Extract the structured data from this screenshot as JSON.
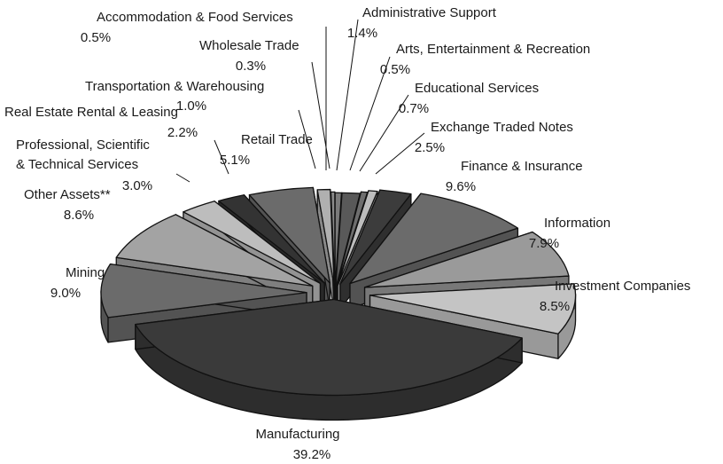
{
  "chart_data": {
    "type": "pie",
    "title": "",
    "style": "3d-exploded",
    "slices": [
      {
        "label": "Accommodation & Food Services",
        "value": 0.5,
        "display": "0.5%",
        "color": "#7a7a7a",
        "label_lines": [
          "Accommodation & Food Services"
        ]
      },
      {
        "label": "Administrative Support",
        "value": 1.4,
        "display": "1.4%",
        "color": "#595959",
        "label_lines": [
          "Administrative Support"
        ]
      },
      {
        "label": "Arts, Entertainment & Recreation",
        "value": 0.5,
        "display": "0.5%",
        "color": "#6e6e6e",
        "label_lines": [
          "Arts, Entertainment & Recreation"
        ]
      },
      {
        "label": "Educational Services",
        "value": 0.7,
        "display": "0.7%",
        "color": "#bdbdbd",
        "label_lines": [
          "Educational Services"
        ]
      },
      {
        "label": "Exchange Traded Notes",
        "value": 2.5,
        "display": "2.5%",
        "color": "#3c3c3c",
        "label_lines": [
          "Exchange Traded Notes"
        ]
      },
      {
        "label": "Finance & Insurance",
        "value": 9.6,
        "display": "9.6%",
        "color": "#6b6b6b",
        "label_lines": [
          "Finance & Insurance"
        ]
      },
      {
        "label": "Information",
        "value": 7.9,
        "display": "7.9%",
        "color": "#9a9a9a",
        "label_lines": [
          "Information"
        ]
      },
      {
        "label": "Investment Companies",
        "value": 8.5,
        "display": "8.5%",
        "color": "#c4c4c4",
        "label_lines": [
          "Investment Companies"
        ]
      },
      {
        "label": "Manufacturing",
        "value": 39.2,
        "display": "39.2%",
        "color": "#3a3a3a",
        "label_lines": [
          "Manufacturing"
        ]
      },
      {
        "label": "Mining",
        "value": 9.0,
        "display": "9.0%",
        "color": "#6b6b6b",
        "label_lines": [
          "Mining"
        ]
      },
      {
        "label": "Other Assets**",
        "value": 8.6,
        "display": "8.6%",
        "color": "#a3a3a3",
        "label_lines": [
          "Other Assets**"
        ]
      },
      {
        "label": "Professional, Scientific & Technical Services",
        "value": 3.0,
        "display": "3.0%",
        "color": "#bdbdbd",
        "label_lines": [
          "Professional, Scientific",
          "& Technical Services"
        ]
      },
      {
        "label": "Real Estate Rental & Leasing",
        "value": 2.2,
        "display": "2.2%",
        "color": "#333333",
        "label_lines": [
          "Real Estate Rental & Leasing"
        ]
      },
      {
        "label": "Retail Trade",
        "value": 5.1,
        "display": "5.1%",
        "color": "#6b6b6b",
        "label_lines": [
          "Retail Trade"
        ]
      },
      {
        "label": "Transportation & Warehousing",
        "value": 1.0,
        "display": "1.0%",
        "color": "#b0b0b0",
        "label_lines": [
          "Transportation & Warehousing"
        ]
      },
      {
        "label": "Wholesale Trade",
        "value": 0.3,
        "display": "0.3%",
        "color": "#8a8a8a",
        "label_lines": [
          "Wholesale Trade"
        ]
      }
    ]
  }
}
